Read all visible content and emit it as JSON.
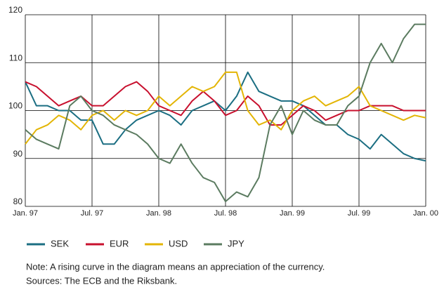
{
  "chart_data": {
    "type": "line",
    "x": [
      0,
      1,
      2,
      3,
      4,
      5,
      6,
      7,
      8,
      9,
      10,
      11,
      12,
      13,
      14,
      15,
      16,
      17,
      18,
      19,
      20,
      21,
      22,
      23,
      24,
      25,
      26,
      27,
      28,
      29,
      30,
      31,
      32,
      33,
      34,
      35,
      36
    ],
    "xlim": [
      0,
      36
    ],
    "xticks": [
      {
        "value": 0,
        "label": "Jan. 97"
      },
      {
        "value": 6,
        "label": "Jul. 97"
      },
      {
        "value": 12,
        "label": "Jan. 98"
      },
      {
        "value": 18,
        "label": "Jul. 98"
      },
      {
        "value": 24,
        "label": "Jan. 99"
      },
      {
        "value": 30,
        "label": "Jul. 99"
      },
      {
        "value": 36,
        "label": "Jan. 00"
      }
    ],
    "ylim": [
      80,
      120
    ],
    "yticks": [
      80,
      90,
      100,
      110,
      120
    ],
    "grid": true,
    "series": [
      {
        "name": "SEK",
        "color": "#1b6e82",
        "values": [
          106,
          101,
          101,
          100,
          100,
          98,
          98,
          93,
          93,
          96,
          98,
          99,
          100,
          99,
          97,
          100,
          101,
          102,
          100,
          103,
          108,
          104,
          103,
          102,
          102,
          101,
          99,
          97,
          97,
          95,
          94,
          92,
          95,
          93,
          91,
          90,
          89.5
        ]
      },
      {
        "name": "EUR",
        "color": "#c8102e",
        "values": [
          106,
          105,
          103,
          101,
          102,
          103,
          101,
          101,
          103,
          105,
          106,
          104,
          101,
          100,
          99,
          102,
          104,
          102,
          99,
          100,
          103,
          101,
          97,
          97,
          99,
          101,
          100,
          98,
          99,
          100,
          100,
          101,
          101,
          101,
          100,
          100,
          100
        ]
      },
      {
        "name": "USD",
        "color": "#e3b505",
        "values": [
          93,
          96,
          97,
          99,
          98,
          96,
          99,
          100,
          98,
          100,
          99,
          100,
          103,
          101,
          103,
          105,
          104,
          105,
          108,
          108,
          100,
          97,
          98,
          96,
          100,
          102,
          103,
          101,
          102,
          103,
          105,
          101,
          100,
          99,
          98,
          99,
          98.5
        ]
      },
      {
        "name": "JPY",
        "color": "#5b7b60",
        "values": [
          96,
          94,
          93,
          92,
          101,
          103,
          100,
          99,
          97,
          96,
          95,
          93,
          90,
          89,
          93,
          89,
          86,
          85,
          81,
          83,
          82,
          86,
          97,
          101,
          95,
          100,
          98,
          97,
          97,
          101,
          103,
          110,
          114,
          110,
          115,
          118,
          118
        ]
      }
    ],
    "note": "Note: A rising curve in the diagram means an appreciation of the currency.",
    "sources": "Sources: The ECB and the Riksbank."
  }
}
